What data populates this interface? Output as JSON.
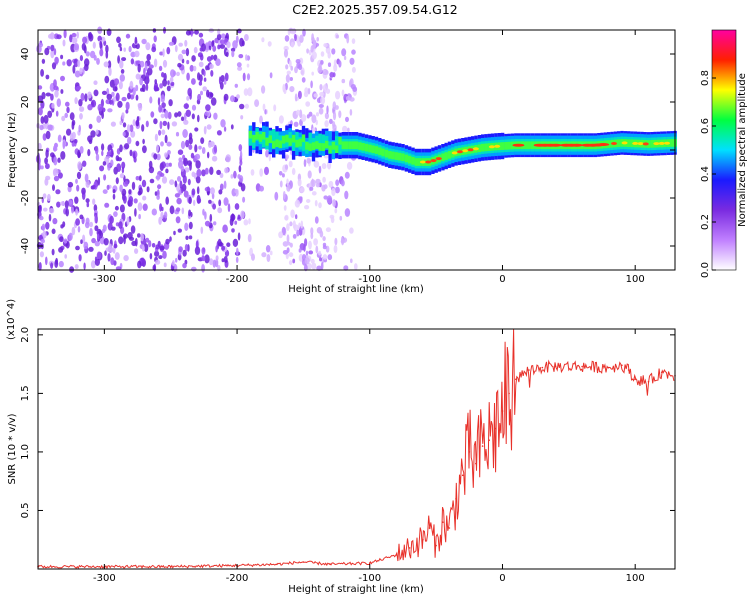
{
  "title": "C2E2.2025.357.09.54.G12",
  "chart_data": [
    {
      "type": "heatmap",
      "xlabel": "Height of straight line (km)",
      "ylabel": "Frequency (Hz)",
      "xlim": [
        -350,
        130
      ],
      "ylim": [
        -50,
        50
      ],
      "xticks": [
        -300,
        -200,
        -100,
        0,
        100
      ],
      "xtick_labels": [
        "-300",
        "-200",
        "-100",
        "0",
        "100"
      ],
      "yticks": [
        -40,
        -20,
        0,
        20,
        40
      ],
      "ytick_labels": [
        "-40",
        "-20",
        "0",
        "20",
        "40"
      ],
      "colorbar": {
        "label": "Normalized spectral amplitude",
        "range": [
          0,
          1
        ],
        "ticks": [
          0.0,
          0.2,
          0.4,
          0.6,
          0.8
        ],
        "tick_labels": [
          "0.0",
          "0.2",
          "0.4",
          "0.6",
          "0.8"
        ],
        "colors": [
          "#ffffff",
          "#c080ff",
          "#7a2be0",
          "#1a1aff",
          "#00e0ff",
          "#00ff40",
          "#ffff00",
          "#ff2000",
          "#ff00a0"
        ]
      },
      "ridge": {
        "description": "Frequency ridge of the tracked signal versus straight-line height",
        "x": [
          -190,
          -170,
          -150,
          -130,
          -110,
          -95,
          -85,
          -75,
          -65,
          -55,
          -45,
          -35,
          -25,
          -15,
          -5,
          10,
          30,
          50,
          70,
          90,
          110,
          130
        ],
        "y": [
          5,
          4,
          3,
          2,
          2,
          0,
          -2,
          -3,
          -5,
          -5,
          -3,
          -1,
          0,
          1,
          1.5,
          2,
          2,
          2,
          2,
          3,
          2.5,
          3
        ]
      },
      "noise_region_x": [
        -350,
        -110
      ]
    },
    {
      "type": "line",
      "xlabel": "Height of straight line (km)",
      "ylabel": "SNR (10 * v/v)",
      "y_multiplier_label": "(x10^4)",
      "xlim": [
        -350,
        130
      ],
      "ylim": [
        0,
        2.05
      ],
      "xticks": [
        -300,
        -200,
        -100,
        0,
        100
      ],
      "xtick_labels": [
        "-300",
        "-200",
        "-100",
        "0",
        "100"
      ],
      "yticks": [
        0.5,
        1.0,
        1.5,
        2.0
      ],
      "ytick_labels": [
        "0.5",
        "1.0",
        "1.5",
        "2.0"
      ],
      "series": [
        {
          "name": "SNR",
          "color": "#e8312a",
          "x": [
            -350,
            -300,
            -250,
            -200,
            -170,
            -150,
            -130,
            -100,
            -80,
            -70,
            -60,
            -55,
            -50,
            -45,
            -40,
            -35,
            -30,
            -25,
            -20,
            -15,
            -10,
            -5,
            0,
            5,
            10,
            20,
            30,
            40,
            60,
            80,
            90,
            95,
            100,
            110,
            120,
            130
          ],
          "y": [
            0.02,
            0.02,
            0.02,
            0.03,
            0.04,
            0.06,
            0.04,
            0.05,
            0.12,
            0.18,
            0.25,
            0.35,
            0.2,
            0.4,
            0.35,
            0.6,
            0.8,
            1.0,
            0.9,
            1.05,
            1.1,
            1.2,
            1.35,
            1.5,
            1.62,
            1.7,
            1.72,
            1.73,
            1.73,
            1.72,
            1.74,
            1.7,
            1.62,
            1.6,
            1.68,
            1.65
          ]
        }
      ]
    }
  ]
}
